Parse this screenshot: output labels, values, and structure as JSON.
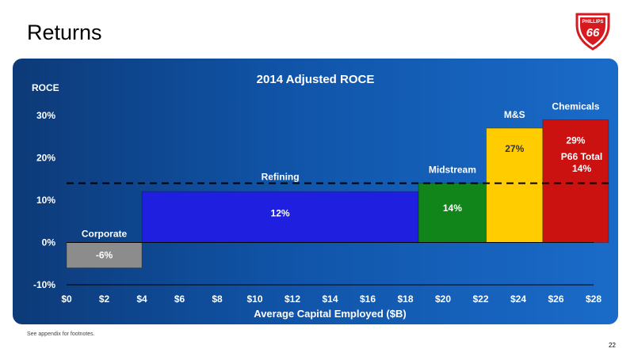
{
  "slide": {
    "title": "Returns",
    "footnote": "See appendix for footnotes.",
    "page_number": "22",
    "logo_text_top": "PHILLIPS",
    "logo_text_main": "66"
  },
  "colors": {
    "panel": "#1054a8",
    "corporate": "#8c8c8c",
    "refining": "#1f1fe0",
    "midstream": "#12851a",
    "ms": "#ffcc00",
    "chemicals": "#cc1111",
    "logo_red": "#d71920"
  },
  "chart_data": {
    "type": "bar",
    "variable_width": true,
    "title": "2014 Adjusted ROCE",
    "ylabel": "ROCE",
    "xlabel": "Average Capital Employed ($B)",
    "xlim": [
      0,
      28
    ],
    "ylim": [
      -10,
      30
    ],
    "x_ticks": [
      "$0",
      "$2",
      "$4",
      "$6",
      "$8",
      "$10",
      "$12",
      "$14",
      "$16",
      "$18",
      "$20",
      "$22",
      "$24",
      "$26",
      "$28"
    ],
    "y_ticks": [
      "-10%",
      "0%",
      "10%",
      "20%",
      "30%"
    ],
    "segments": [
      {
        "name": "Corporate",
        "x_start": 0,
        "x_end": 4,
        "value": -6,
        "label": "-6%",
        "color": "#8c8c8c"
      },
      {
        "name": "Refining",
        "x_start": 4,
        "x_end": 18.7,
        "value": 12,
        "label": "12%",
        "color": "#1f1fe0"
      },
      {
        "name": "Midstream",
        "x_start": 18.7,
        "x_end": 22.3,
        "value": 14,
        "label": "14%",
        "color": "#12851a"
      },
      {
        "name": "M&S",
        "x_start": 22.3,
        "x_end": 25.3,
        "value": 27,
        "label": "27%",
        "color": "#ffcc00"
      },
      {
        "name": "Chemicals",
        "x_start": 25.3,
        "x_end": 28.8,
        "value": 29,
        "label": "29%",
        "color": "#cc1111"
      }
    ],
    "reference_line": {
      "value": 14,
      "label_line1": "P66 Total",
      "label_line2": "14%"
    }
  }
}
